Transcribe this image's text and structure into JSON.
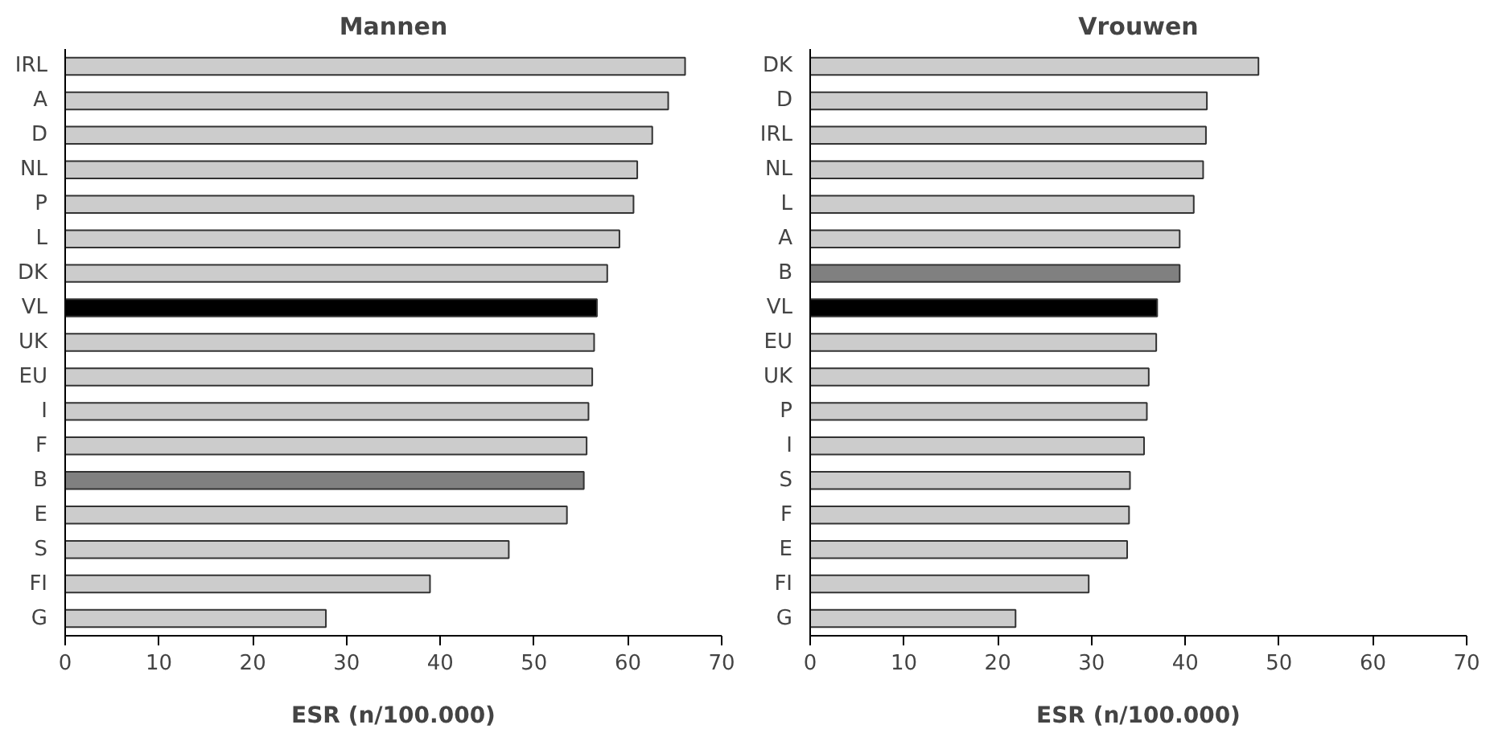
{
  "chart_data": [
    {
      "type": "bar",
      "orientation": "horizontal",
      "title": "Mannen",
      "xlabel": "ESR (n/100.000)",
      "categories": [
        "IRL",
        "A",
        "D",
        "NL",
        "P",
        "L",
        "DK",
        "VL",
        "UK",
        "EU",
        "I",
        "F",
        "B",
        "E",
        "S",
        "FI",
        "G"
      ],
      "values": [
        66.1,
        64.3,
        62.6,
        61.0,
        60.6,
        59.1,
        57.8,
        56.7,
        56.4,
        56.2,
        55.8,
        55.6,
        55.3,
        53.5,
        47.3,
        38.9,
        27.8
      ],
      "colors": [
        "#cccccc",
        "#cccccc",
        "#cccccc",
        "#cccccc",
        "#cccccc",
        "#cccccc",
        "#cccccc",
        "#000000",
        "#cccccc",
        "#cccccc",
        "#cccccc",
        "#cccccc",
        "#808080",
        "#cccccc",
        "#cccccc",
        "#cccccc",
        "#cccccc"
      ],
      "xlim": [
        0,
        70
      ],
      "xticks": [
        0,
        10,
        20,
        30,
        40,
        50,
        60,
        70
      ],
      "grid": false
    },
    {
      "type": "bar",
      "orientation": "horizontal",
      "title": "Vrouwen",
      "xlabel": "ESR (n/100.000)",
      "categories": [
        "DK",
        "D",
        "IRL",
        "NL",
        "L",
        "A",
        "B",
        "VL",
        "EU",
        "UK",
        "P",
        "I",
        "S",
        "F",
        "E",
        "FI",
        "G"
      ],
      "values": [
        47.8,
        42.3,
        42.2,
        41.9,
        40.9,
        39.4,
        39.4,
        37.0,
        36.9,
        36.1,
        35.9,
        35.6,
        34.1,
        34.0,
        33.8,
        29.7,
        21.9
      ],
      "colors": [
        "#cccccc",
        "#cccccc",
        "#cccccc",
        "#cccccc",
        "#cccccc",
        "#cccccc",
        "#808080",
        "#000000",
        "#cccccc",
        "#cccccc",
        "#cccccc",
        "#cccccc",
        "#cccccc",
        "#cccccc",
        "#cccccc",
        "#cccccc",
        "#cccccc"
      ],
      "xlim": [
        0,
        70
      ],
      "xticks": [
        0,
        10,
        20,
        30,
        40,
        50,
        60,
        70
      ],
      "grid": false
    }
  ]
}
